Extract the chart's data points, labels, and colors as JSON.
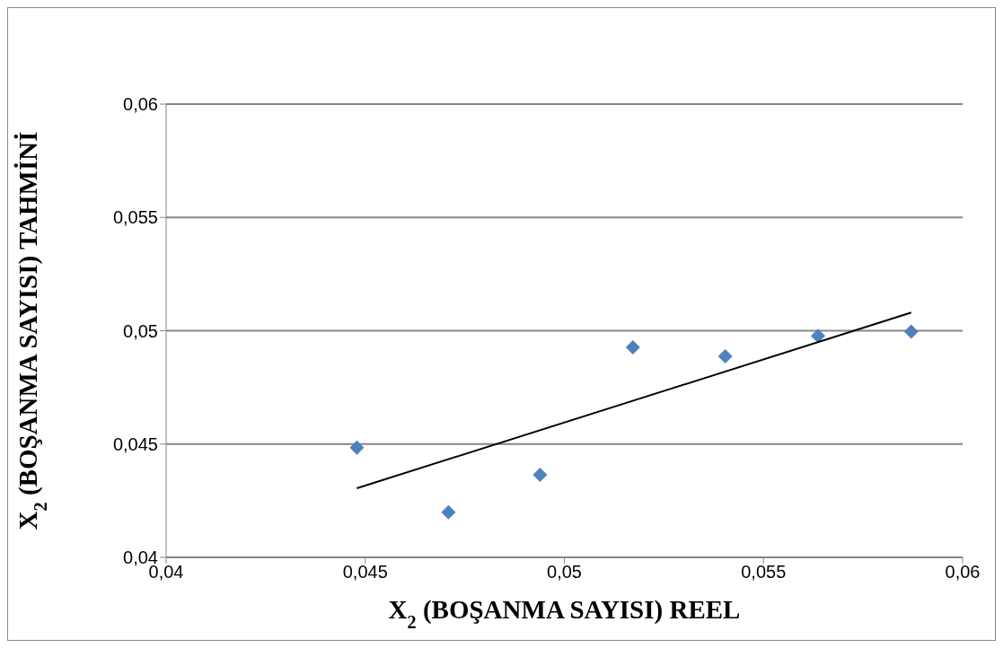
{
  "chart_data": {
    "type": "scatter",
    "xlabel": "X$_{2}$ (BOŞANMA SAYISI) REEL",
    "ylabel": "X$_{2}$ (BOŞANMA SAYISI) TAHMİNİ",
    "xlim": [
      0.04,
      0.06
    ],
    "ylim": [
      0.04,
      0.06
    ],
    "xticks": [
      {
        "value": 0.04,
        "label": "0,04"
      },
      {
        "value": 0.045,
        "label": "0,045"
      },
      {
        "value": 0.05,
        "label": "0,05"
      },
      {
        "value": 0.055,
        "label": "0,055"
      },
      {
        "value": 0.06,
        "label": "0,06"
      }
    ],
    "yticks": [
      {
        "value": 0.04,
        "label": "0,04"
      },
      {
        "value": 0.045,
        "label": "0,045"
      },
      {
        "value": 0.05,
        "label": "0,05"
      },
      {
        "value": 0.055,
        "label": "0,055"
      },
      {
        "value": 0.06,
        "label": "0,06"
      }
    ],
    "grid": "y",
    "legend": false,
    "series": [
      {
        "type": "scatter",
        "color": "#4f81bd",
        "marker": "diamond",
        "x": [
          0.04479,
          0.04709,
          0.04939,
          0.05172,
          0.05404,
          0.05637,
          0.05871
        ],
        "values": [
          0.04484,
          0.04199,
          0.04364,
          0.04927,
          0.04887,
          0.04977,
          0.04996
        ]
      },
      {
        "type": "line",
        "color": "#000000",
        "marker": "none",
        "line_style": "solid",
        "x": [
          0.04479,
          0.05871
        ],
        "values": [
          0.04305,
          0.0508
        ]
      }
    ]
  }
}
